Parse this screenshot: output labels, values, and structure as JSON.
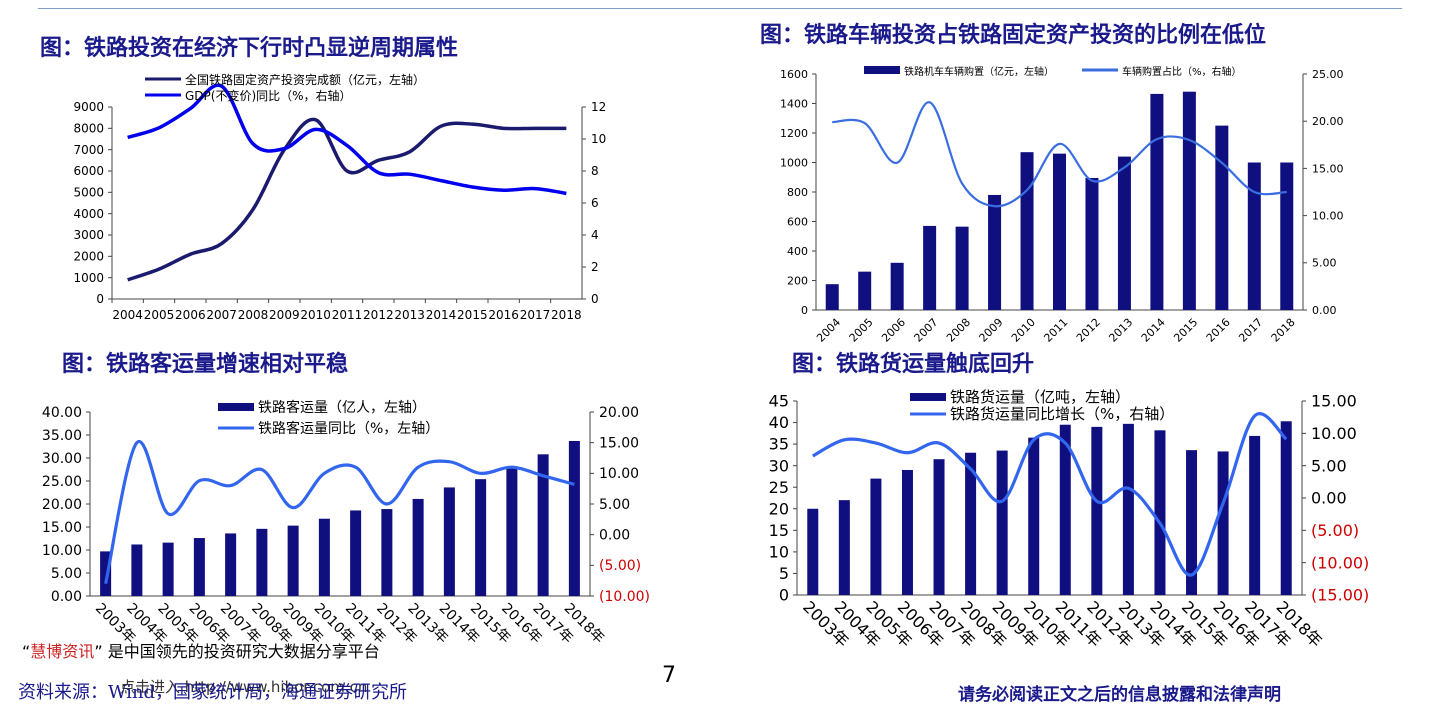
{
  "colors": {
    "bar": "#0f0f80",
    "line_dark": "#1a1a6e",
    "line_blue": "#0000ee",
    "line_light": "#3366ee",
    "title": "#1a1a8c",
    "negative": "#cc0000"
  },
  "page_number": "7",
  "footer": {
    "brand": "慧博资讯",
    "tagline": "是中国领先的投资研究大数据分享平台",
    "source": "资料来源：Wind，国家统计局，海通证券研究所",
    "disclaimer": "请务必阅读正文之后的信息披露和法律声明",
    "watermark": "点击进入 http://www.hibor.com.cn"
  },
  "chart_data": [
    {
      "id": "c1",
      "type": "line",
      "title": "图：铁路投资在经济下行时凸显逆周期属性",
      "categories": [
        "2004",
        "2005",
        "2006",
        "2007",
        "2008",
        "2009",
        "2010",
        "2011",
        "2012",
        "2013",
        "2014",
        "2015",
        "2016",
        "2017",
        "2018"
      ],
      "series": [
        {
          "name": "全国铁路固定资产投资完成额（亿元，左轴）",
          "axis": "left",
          "values": [
            900,
            1400,
            2100,
            2600,
            4200,
            7000,
            8400,
            6000,
            6500,
            6900,
            8100,
            8200,
            8000,
            8000,
            8000
          ]
        },
        {
          "name": "GDP(不变价)同比（%，右轴）",
          "axis": "right",
          "values": [
            10.1,
            10.7,
            11.9,
            13.3,
            9.7,
            9.4,
            10.6,
            9.6,
            7.9,
            7.8,
            7.4,
            7.0,
            6.8,
            6.9,
            6.6
          ]
        }
      ],
      "ylim": [
        0,
        9000
      ],
      "yticks": [
        0,
        1000,
        2000,
        3000,
        4000,
        5000,
        6000,
        7000,
        8000,
        9000
      ],
      "y2lim": [
        0,
        12
      ],
      "y2ticks": [
        0,
        2,
        4,
        6,
        8,
        10,
        12
      ],
      "legend": "top-left"
    },
    {
      "id": "c2",
      "type": "bar",
      "title": "图：铁路车辆投资占铁路固定资产投资的比例在低位",
      "categories": [
        "2004",
        "2005",
        "2006",
        "2007",
        "2008",
        "2009",
        "2010",
        "2011",
        "2012",
        "2013",
        "2014",
        "2015",
        "2016",
        "2017",
        "2018"
      ],
      "series": [
        {
          "name": "铁路机车车辆购置（亿元，左轴）",
          "kind": "bar",
          "axis": "left",
          "values": [
            175,
            260,
            320,
            570,
            565,
            780,
            1070,
            1060,
            895,
            1040,
            1465,
            1480,
            1250,
            1000,
            1000
          ]
        },
        {
          "name": "车辆购置占比（%，右轴）",
          "kind": "line",
          "axis": "right",
          "values": [
            19.9,
            19.8,
            15.6,
            22.0,
            13.4,
            11.0,
            12.7,
            17.6,
            13.7,
            15.1,
            18.1,
            18.0,
            15.6,
            12.5,
            12.5
          ]
        }
      ],
      "ylim": [
        0,
        1600
      ],
      "yticks": [
        0,
        200,
        400,
        600,
        800,
        1000,
        1200,
        1400,
        1600
      ],
      "y2lim": [
        0,
        25
      ],
      "y2ticks": [
        "0.00",
        "5.00",
        "10.00",
        "15.00",
        "20.00",
        "25.00"
      ],
      "legend": "top"
    },
    {
      "id": "c3",
      "type": "bar",
      "title": "图：铁路客运量增速相对平稳",
      "categories": [
        "2003年",
        "2004年",
        "2005年",
        "2006年",
        "2007年",
        "2008年",
        "2009年",
        "2010年",
        "2011年",
        "2012年",
        "2013年",
        "2014年",
        "2015年",
        "2016年",
        "2017年",
        "2018年"
      ],
      "series": [
        {
          "name": "铁路客运量（亿人，左轴）",
          "kind": "bar",
          "axis": "left",
          "values": [
            9.7,
            11.2,
            11.6,
            12.6,
            13.6,
            14.6,
            15.3,
            16.8,
            18.6,
            18.9,
            21.1,
            23.6,
            25.4,
            27.8,
            30.8,
            33.7
          ]
        },
        {
          "name": "铁路客运量同比（%，左轴）",
          "kind": "line",
          "axis": "right",
          "values": [
            -8.0,
            15.0,
            3.4,
            8.8,
            8.0,
            10.6,
            4.4,
            10.0,
            11.0,
            5.0,
            11.0,
            11.9,
            10.0,
            11.0,
            9.6,
            8.2
          ]
        }
      ],
      "ylim": [
        0,
        40
      ],
      "yticks": [
        "0.00",
        "5.00",
        "10.00",
        "15.00",
        "20.00",
        "25.00",
        "30.00",
        "35.00",
        "40.00"
      ],
      "y2lim": [
        -10,
        20
      ],
      "y2ticks": [
        "(10.00)",
        "(5.00)",
        "0.00",
        "5.00",
        "10.00",
        "15.00",
        "20.00"
      ],
      "legend": "top"
    },
    {
      "id": "c4",
      "type": "bar",
      "title": "图：铁路货运量触底回升",
      "categories": [
        "2003年",
        "2004年",
        "2005年",
        "2006年",
        "2007年",
        "2008年",
        "2009年",
        "2010年",
        "2011年",
        "2012年",
        "2013年",
        "2014年",
        "2015年",
        "2016年",
        "2017年",
        "2018年"
      ],
      "series": [
        {
          "name": "铁路货运量（亿吨，左轴）",
          "kind": "bar",
          "axis": "left",
          "values": [
            20,
            22,
            27,
            29,
            31.5,
            33,
            33.5,
            36.5,
            39.5,
            39,
            39.7,
            38.2,
            33.6,
            33.3,
            36.9,
            40.3
          ]
        },
        {
          "name": "铁路货运量同比增长（%，右轴）",
          "kind": "line",
          "axis": "right",
          "values": [
            6.5,
            9.0,
            8.5,
            7.0,
            8.5,
            4.5,
            -0.5,
            9.0,
            8.5,
            -0.5,
            1.5,
            -3.9,
            -11.9,
            -0.8,
            12.7,
            9.1
          ]
        }
      ],
      "ylim": [
        0,
        45
      ],
      "yticks": [
        "0",
        "5",
        "10",
        "15",
        "20",
        "25",
        "30",
        "35",
        "40",
        "45"
      ],
      "y2lim": [
        -15,
        15
      ],
      "y2ticks": [
        "(15.00)",
        "(10.00)",
        "(5.00)",
        "0.00",
        "5.00",
        "10.00",
        "15.00"
      ],
      "legend": "top"
    }
  ]
}
